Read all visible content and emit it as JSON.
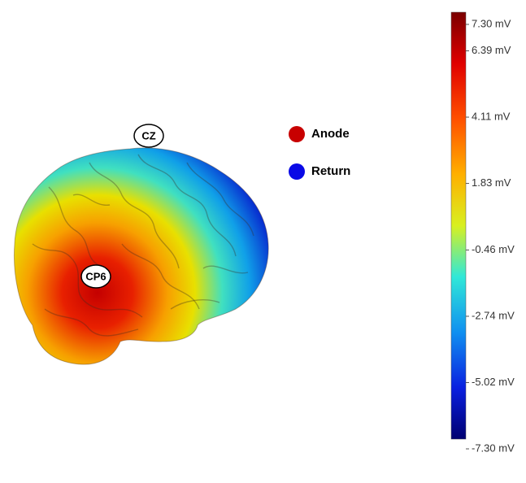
{
  "electrodes": [
    {
      "label": "CZ"
    },
    {
      "label": "CP6"
    }
  ],
  "legend": [
    {
      "label": "Anode",
      "color": "#c80000"
    },
    {
      "label": "Return",
      "color": "#0a0ae6"
    }
  ],
  "colorbar": {
    "range": [
      -7.3,
      7.3
    ],
    "ticks": [
      {
        "value": 7.3,
        "label": "7.30 mV"
      },
      {
        "value": 6.39,
        "label": "6.39 mV"
      },
      {
        "value": 4.11,
        "label": "4.11 mV"
      },
      {
        "value": 1.83,
        "label": "1.83 mV"
      },
      {
        "value": -0.46,
        "label": "-0.46 mV"
      },
      {
        "value": -2.74,
        "label": "-2.74 mV"
      },
      {
        "value": -5.02,
        "label": "-5.02 mV"
      },
      {
        "value": -7.3,
        "label": "-7.30 mV"
      }
    ]
  }
}
